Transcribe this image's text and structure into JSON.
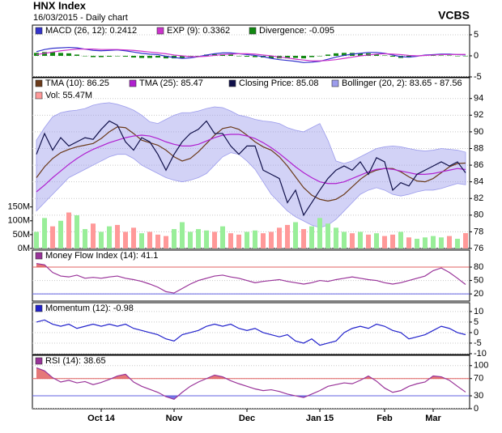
{
  "header": {
    "title": "HNX Index",
    "subtitle": "16/03/2015 - Daily chart",
    "source": "VCBS"
  },
  "chart_data": [
    {
      "type": "line",
      "ylim": [
        -5,
        7.3
      ],
      "yticks": [
        -5,
        0,
        5
      ],
      "grid": true,
      "series": [
        {
          "name": "MACD (26, 12): 0.2412",
          "color": "#3333cc",
          "style": "line",
          "values": [
            1.0,
            1.5,
            1.8,
            1.9,
            2.0,
            1.9,
            1.6,
            1.3,
            1.2,
            1.3,
            1.4,
            1.2,
            0.9,
            0.6,
            0.4,
            0.3,
            -0.1,
            -0.4,
            -0.6,
            -0.5,
            -0.2,
            0.2,
            0.5,
            0.7,
            0.7,
            0.5,
            0.3,
            0.1,
            -0.2,
            -0.6,
            -0.9,
            -1.1,
            -1.3,
            -1.6,
            -1.5,
            -1.3,
            -0.8,
            -0.3,
            0.1,
            0.4,
            0.6,
            0.8,
            0.8,
            0.6,
            0.2,
            -0.2,
            -0.3,
            -0.1,
            0.2,
            0.3,
            0.4,
            0.4,
            0.3,
            0.24
          ]
        },
        {
          "name": "EXP (9): 0.3362",
          "color": "#cc33cc",
          "style": "line",
          "values": [
            0.3,
            0.6,
            0.9,
            1.2,
            1.4,
            1.6,
            1.6,
            1.6,
            1.5,
            1.5,
            1.5,
            1.4,
            1.3,
            1.1,
            0.9,
            0.7,
            0.5,
            0.2,
            0.0,
            -0.2,
            -0.2,
            -0.1,
            0.1,
            0.3,
            0.4,
            0.5,
            0.5,
            0.4,
            0.2,
            0.0,
            -0.3,
            -0.5,
            -0.8,
            -1.0,
            -1.2,
            -1.2,
            -1.1,
            -0.9,
            -0.6,
            -0.3,
            0.0,
            0.2,
            0.4,
            0.5,
            0.4,
            0.3,
            0.1,
            0.0,
            0.1,
            0.2,
            0.3,
            0.3,
            0.34,
            0.34
          ]
        },
        {
          "name": "Divergence: -0.095",
          "color": "#118811",
          "style": "bar",
          "values": [
            0.7,
            0.9,
            0.9,
            0.7,
            0.6,
            0.3,
            0.0,
            -0.3,
            -0.3,
            -0.2,
            -0.1,
            -0.2,
            -0.4,
            -0.5,
            -0.5,
            -0.4,
            -0.6,
            -0.6,
            -0.6,
            -0.3,
            0.0,
            0.3,
            0.4,
            0.4,
            0.3,
            0.0,
            -0.2,
            -0.3,
            -0.4,
            -0.6,
            -0.6,
            -0.6,
            -0.5,
            -0.6,
            -0.3,
            -0.1,
            0.3,
            0.6,
            0.7,
            0.7,
            0.6,
            0.6,
            0.4,
            0.1,
            -0.2,
            -0.5,
            -0.4,
            -0.1,
            0.1,
            0.1,
            0.1,
            0.1,
            -0.04,
            -0.095
          ]
        }
      ]
    },
    {
      "type": "line",
      "ylim": [
        76,
        96.5
      ],
      "yticks": [
        76,
        78,
        80,
        82,
        84,
        86,
        88,
        90,
        92,
        94
      ],
      "grid": true,
      "y2lim": [
        0,
        617
      ],
      "y2ticks": [
        {
          "value": 0,
          "label": "0M"
        },
        {
          "value": 50,
          "label": "50M"
        },
        {
          "value": 100,
          "label": "100M"
        },
        {
          "value": 150,
          "label": "150M"
        }
      ],
      "series": [
        {
          "name": "TMA (10): 86.25",
          "color": "#6b3a1a",
          "style": "line",
          "values": [
            84.5,
            85.8,
            86.8,
            87.5,
            87.9,
            88.2,
            88.4,
            88.6,
            89.2,
            90.0,
            90.6,
            90.5,
            89.8,
            89.0,
            88.7,
            88.4,
            87.8,
            87.0,
            86.5,
            86.8,
            87.6,
            88.6,
            89.6,
            90.4,
            90.6,
            90.3,
            89.6,
            88.8,
            88.2,
            87.8,
            87.0,
            85.9,
            84.6,
            83.3,
            82.4,
            81.9,
            81.7,
            81.9,
            82.5,
            83.4,
            84.3,
            85.0,
            85.4,
            85.6,
            85.6,
            85.2,
            84.6,
            84.1,
            84.0,
            84.4,
            85.1,
            85.8,
            86.2,
            86.25
          ]
        },
        {
          "name": "TMA (25): 85.47",
          "color": "#b020d0",
          "style": "line",
          "values": [
            82.8,
            83.6,
            84.5,
            85.3,
            86.1,
            86.8,
            87.4,
            87.9,
            88.3,
            88.7,
            89.0,
            89.3,
            89.5,
            89.6,
            89.5,
            89.2,
            88.8,
            88.5,
            88.3,
            88.3,
            88.5,
            88.9,
            89.3,
            89.6,
            89.7,
            89.7,
            89.5,
            89.2,
            88.7,
            88.1,
            87.4,
            86.6,
            85.8,
            85.1,
            84.5,
            84.0,
            83.8,
            83.8,
            84.0,
            84.4,
            84.8,
            85.2,
            85.5,
            85.6,
            85.5,
            85.3,
            85.1,
            84.9,
            84.9,
            85.0,
            85.2,
            85.4,
            85.6,
            85.47
          ]
        },
        {
          "name": "Closing Price: 85.08",
          "color": "#10104a",
          "style": "line",
          "values": [
            87.3,
            89.8,
            87.8,
            89.3,
            88.3,
            88.8,
            89.3,
            89.1,
            90.3,
            91.3,
            90.8,
            88.8,
            87.8,
            89.3,
            88.8,
            87.3,
            85.4,
            87.3,
            88.8,
            89.8,
            90.3,
            91.3,
            89.8,
            89.8,
            88.3,
            87.3,
            88.3,
            88.3,
            85.4,
            84.9,
            84.4,
            81.5,
            83.0,
            80.0,
            81.5,
            83.0,
            84.4,
            85.4,
            85.9,
            85.4,
            86.4,
            84.9,
            86.9,
            86.4,
            83.0,
            83.9,
            83.5,
            84.9,
            85.4,
            85.9,
            86.4,
            85.9,
            86.4,
            85.08
          ]
        },
        {
          "name": "Bollinger (20, 2): 83.65 - 87.56",
          "color": "#9c9cec",
          "style": "band",
          "upper": [
            89.0,
            90.5,
            91.8,
            92.3,
            92.5,
            92.6,
            92.8,
            93.2,
            93.4,
            93.5,
            93.3,
            93.0,
            92.6,
            92.0,
            91.2,
            91.0,
            91.5,
            92.0,
            92.3,
            92.3,
            92.5,
            92.8,
            93.0,
            92.9,
            92.5,
            92.0,
            91.8,
            91.5,
            91.3,
            91.2,
            91.0,
            90.5,
            90.2,
            90.0,
            90.5,
            91.0,
            89.0,
            86.5,
            86.2,
            86.5,
            87.0,
            87.5,
            88.0,
            88.2,
            88.3,
            88.2,
            88.0,
            87.8,
            87.7,
            87.8,
            88.0,
            87.9,
            87.8,
            87.56
          ],
          "lower": [
            80.5,
            81.5,
            82.5,
            83.5,
            84.5,
            85.0,
            85.5,
            86.0,
            86.5,
            87.0,
            87.3,
            87.3,
            86.8,
            86.0,
            85.5,
            85.0,
            84.5,
            84.2,
            84.0,
            84.2,
            84.5,
            85.0,
            86.0,
            87.0,
            87.5,
            87.3,
            86.5,
            85.5,
            84.0,
            82.5,
            81.5,
            80.5,
            79.8,
            79.3,
            78.8,
            78.5,
            78.8,
            79.5,
            80.5,
            81.5,
            82.5,
            83.0,
            83.3,
            83.0,
            82.5,
            82.3,
            82.5,
            82.8,
            83.0,
            83.0,
            83.2,
            83.5,
            83.8,
            83.65
          ]
        },
        {
          "name": "Vol: 55.47M",
          "color": "#ff9999",
          "style": "bar",
          "axis": "y2",
          "values": [
            60,
            110,
            80,
            100,
            130,
            120,
            70,
            90,
            60,
            80,
            85,
            60,
            75,
            55,
            60,
            50,
            45,
            70,
            95,
            60,
            70,
            65,
            60,
            80,
            55,
            50,
            60,
            65,
            55,
            60,
            75,
            85,
            95,
            70,
            80,
            110,
            90,
            75,
            60,
            55,
            60,
            50,
            55,
            45,
            50,
            60,
            40,
            35,
            40,
            45,
            40,
            45,
            35,
            55.47
          ],
          "colors": [
            "#99ee99",
            "#99ee99",
            "#ff9999",
            "#99ee99",
            "#ff9999",
            "#99ee99",
            "#99ee99",
            "#ff9999",
            "#99ee99",
            "#99ee99",
            "#ff9999",
            "#ff9999",
            "#ff9999",
            "#99ee99",
            "#ff9999",
            "#ff9999",
            "#ff9999",
            "#99ee99",
            "#99ee99",
            "#99ee99",
            "#99ee99",
            "#99ee99",
            "#ff9999",
            "#99ee99",
            "#ff9999",
            "#ff9999",
            "#99ee99",
            "#99ee99",
            "#ff9999",
            "#ff9999",
            "#ff9999",
            "#ff9999",
            "#99ee99",
            "#ff9999",
            "#99ee99",
            "#99ee99",
            "#99ee99",
            "#99ee99",
            "#99ee99",
            "#ff9999",
            "#99ee99",
            "#ff9999",
            "#99ee99",
            "#ff9999",
            "#ff9999",
            "#99ee99",
            "#ff9999",
            "#99ee99",
            "#99ee99",
            "#99ee99",
            "#99ee99",
            "#ff9999",
            "#99ee99",
            "#ff9999"
          ]
        }
      ]
    },
    {
      "type": "line",
      "ylim": [
        4,
        118
      ],
      "yticks": [
        20,
        50,
        80
      ],
      "grid": true,
      "levels": [
        {
          "value": 80,
          "color": "#e06060",
          "fill": "above"
        },
        {
          "value": 20,
          "color": "#6060e0"
        }
      ],
      "series": [
        {
          "name": "Money Flow Index (14): 41.1",
          "color": "#993399",
          "style": "line",
          "values": [
            88,
            85,
            68,
            60,
            58,
            62,
            55,
            57,
            55,
            58,
            60,
            55,
            52,
            48,
            42,
            35,
            25,
            22,
            32,
            42,
            50,
            55,
            60,
            62,
            58,
            55,
            50,
            45,
            48,
            50,
            52,
            48,
            45,
            42,
            45,
            50,
            48,
            52,
            55,
            58,
            55,
            52,
            50,
            45,
            42,
            45,
            50,
            55,
            60,
            72,
            78,
            68,
            55,
            41.1
          ]
        }
      ]
    },
    {
      "type": "line",
      "ylim": [
        -10.4,
        14.2
      ],
      "yticks": [
        -10,
        -5,
        0,
        5,
        10
      ],
      "grid": true,
      "series": [
        {
          "name": "Momentum (12): -0.98",
          "color": "#2222cc",
          "style": "line",
          "values": [
            5,
            6,
            4,
            3,
            4,
            2,
            3,
            4,
            3,
            4,
            3,
            4,
            2,
            1,
            0,
            -1,
            -3,
            -4,
            -1,
            0,
            1,
            3,
            4,
            3,
            4,
            2,
            1,
            2,
            0,
            -1,
            -2,
            -1,
            -4,
            -5,
            -3,
            -6,
            -5,
            -4,
            0,
            2,
            3,
            2,
            4,
            3,
            1,
            0,
            -3,
            -2,
            -1,
            1,
            3,
            2,
            0,
            -0.98
          ]
        }
      ]
    },
    {
      "type": "line",
      "ylim": [
        0,
        124
      ],
      "yticks": [
        0,
        30,
        70,
        100
      ],
      "grid": true,
      "levels": [
        {
          "value": 70,
          "color": "#e06060",
          "fill": "above"
        },
        {
          "value": 30,
          "color": "#6060e0",
          "fill": "below"
        }
      ],
      "categories": [
        null,
        null,
        null,
        null,
        null,
        null,
        null,
        null,
        "Oct 14",
        null,
        null,
        null,
        null,
        null,
        null,
        null,
        null,
        "Nov",
        null,
        null,
        null,
        null,
        null,
        null,
        null,
        null,
        "Dec",
        null,
        null,
        null,
        null,
        null,
        null,
        null,
        null,
        "Jan 15",
        null,
        null,
        null,
        null,
        null,
        null,
        null,
        "Feb",
        null,
        null,
        null,
        null,
        null,
        "Mar",
        null,
        null,
        null,
        null
      ],
      "series": [
        {
          "name": "RSI (14): 38.65",
          "color": "#993399",
          "style": "line",
          "values": [
            95,
            88,
            72,
            62,
            66,
            60,
            63,
            56,
            61,
            68,
            76,
            80,
            62,
            52,
            45,
            38,
            28,
            22,
            38,
            52,
            62,
            70,
            78,
            74,
            65,
            58,
            52,
            46,
            42,
            44,
            40,
            34,
            30,
            26,
            34,
            42,
            52,
            56,
            60,
            58,
            66,
            76,
            64,
            48,
            38,
            42,
            52,
            58,
            62,
            76,
            74,
            66,
            52,
            38.65
          ]
        }
      ]
    }
  ]
}
